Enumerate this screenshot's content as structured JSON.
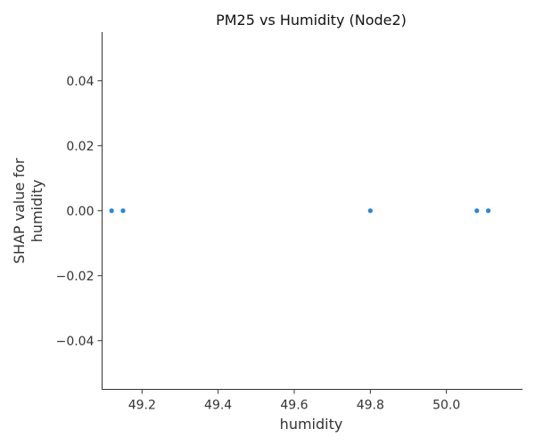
{
  "chart_data": {
    "type": "scatter",
    "title": "PM25 vs Humidity (Node2)",
    "xlabel": "humidity",
    "ylabel_lines": [
      "SHAP value for",
      "humidity"
    ],
    "xlim": [
      49.095,
      50.2
    ],
    "ylim": [
      -0.055,
      0.055
    ],
    "xticks": [
      49.2,
      49.4,
      49.6,
      49.8,
      50.0
    ],
    "xtick_labels": [
      "49.2",
      "49.4",
      "49.6",
      "49.8",
      "50.0"
    ],
    "yticks": [
      0.04,
      0.02,
      0.0,
      -0.02,
      -0.04
    ],
    "ytick_labels": [
      "0.04",
      "0.02",
      "0.00",
      "−0.02",
      "−0.04"
    ],
    "grid": false,
    "points": [
      {
        "x": 49.12,
        "y": 0.0
      },
      {
        "x": 49.15,
        "y": 0.0
      },
      {
        "x": 49.8,
        "y": 0.0
      },
      {
        "x": 50.08,
        "y": 0.0
      },
      {
        "x": 50.11,
        "y": 0.0
      }
    ],
    "point_color": "#1e88e5"
  }
}
